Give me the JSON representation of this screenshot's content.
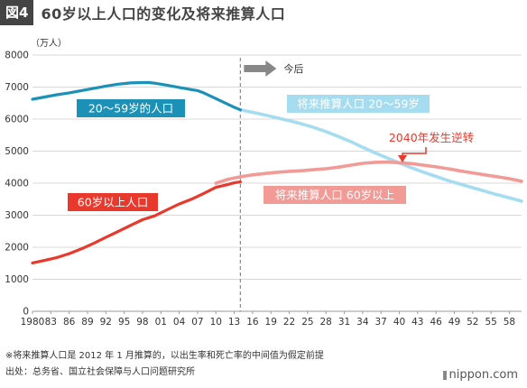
{
  "header": {
    "badge": "図4",
    "title": "60岁以上人口的变化及将来推算人口"
  },
  "footer": {
    "note": "※将来推算人口是 2012 年 1 月推算的，以出生率和死亡率的中间值为假定前提",
    "source": "出处：总务省、国立社会保障与人口问题研究所",
    "logo": "nippon.com"
  },
  "chart_data": {
    "type": "line",
    "ylabel": "（万人）",
    "ylim": [
      0,
      8000
    ],
    "xlim": [
      1980,
      2060
    ],
    "y_ticks": [
      "0",
      "1000",
      "2000",
      "3000",
      "4000",
      "5000",
      "6000",
      "7000",
      "8000"
    ],
    "x_ticks": [
      "1980",
      "83",
      "86",
      "89",
      "92",
      "95",
      "98",
      "01",
      "04",
      "07",
      "10",
      "13",
      "16",
      "19",
      "22",
      "25",
      "28",
      "31",
      "34",
      "37",
      "40",
      "43",
      "46",
      "49",
      "52",
      "55",
      "58"
    ],
    "grid": "horizontal",
    "divider_year": 2014,
    "annotations": {
      "future_arrow": "今后",
      "crossover": "2040年发生逆转"
    },
    "colors": {
      "working_actual": "#1c91b8",
      "working_projected": "#a5dcef",
      "elderly_actual": "#e8392c",
      "elderly_projected": "#f29a96",
      "crossover": "#e8392c"
    },
    "series": [
      {
        "name": "20〜59岁的人口",
        "x": [
          1980,
          1982,
          1984,
          1986,
          1988,
          1990,
          1992,
          1994,
          1995,
          1996,
          1998,
          1999,
          2000,
          2002,
          2004,
          2006,
          2007,
          2008,
          2010,
          2012,
          2013,
          2014
        ],
        "values": [
          6620,
          6690,
          6760,
          6820,
          6890,
          6960,
          7030,
          7090,
          7110,
          7130,
          7140,
          7140,
          7120,
          7060,
          6990,
          6920,
          6890,
          6820,
          6640,
          6460,
          6370,
          6290
        ]
      },
      {
        "name": "将来推算人口 20〜59岁",
        "x": [
          2014,
          2016,
          2018,
          2020,
          2022,
          2024,
          2026,
          2028,
          2030,
          2032,
          2034,
          2036,
          2038,
          2040,
          2042,
          2044,
          2046,
          2048,
          2050,
          2052,
          2054,
          2056,
          2058,
          2060
        ],
        "values": [
          6290,
          6210,
          6130,
          6040,
          5950,
          5850,
          5740,
          5610,
          5460,
          5300,
          5120,
          4950,
          4790,
          4630,
          4480,
          4340,
          4210,
          4080,
          3970,
          3860,
          3750,
          3640,
          3540,
          3440
        ]
      },
      {
        "name": "60岁以上人口",
        "x": [
          1980,
          1982,
          1984,
          1986,
          1988,
          1990,
          1992,
          1994,
          1996,
          1998,
          2000,
          2002,
          2004,
          2006,
          2008,
          2010,
          2012,
          2013,
          2014
        ],
        "values": [
          1510,
          1590,
          1680,
          1800,
          1950,
          2120,
          2310,
          2490,
          2680,
          2860,
          2980,
          3170,
          3350,
          3500,
          3680,
          3870,
          3960,
          4010,
          4040
        ]
      },
      {
        "name": "将来推算人口 60岁以上",
        "x": [
          2010,
          2012,
          2014,
          2016,
          2018,
          2020,
          2022,
          2024,
          2026,
          2028,
          2030,
          2032,
          2034,
          2036,
          2038,
          2040,
          2042,
          2044,
          2046,
          2048,
          2050,
          2052,
          2054,
          2056,
          2058,
          2060
        ],
        "values": [
          4000,
          4120,
          4200,
          4260,
          4300,
          4340,
          4370,
          4390,
          4420,
          4450,
          4500,
          4560,
          4620,
          4650,
          4660,
          4640,
          4610,
          4560,
          4510,
          4450,
          4380,
          4320,
          4260,
          4200,
          4140,
          4060
        ]
      }
    ]
  }
}
